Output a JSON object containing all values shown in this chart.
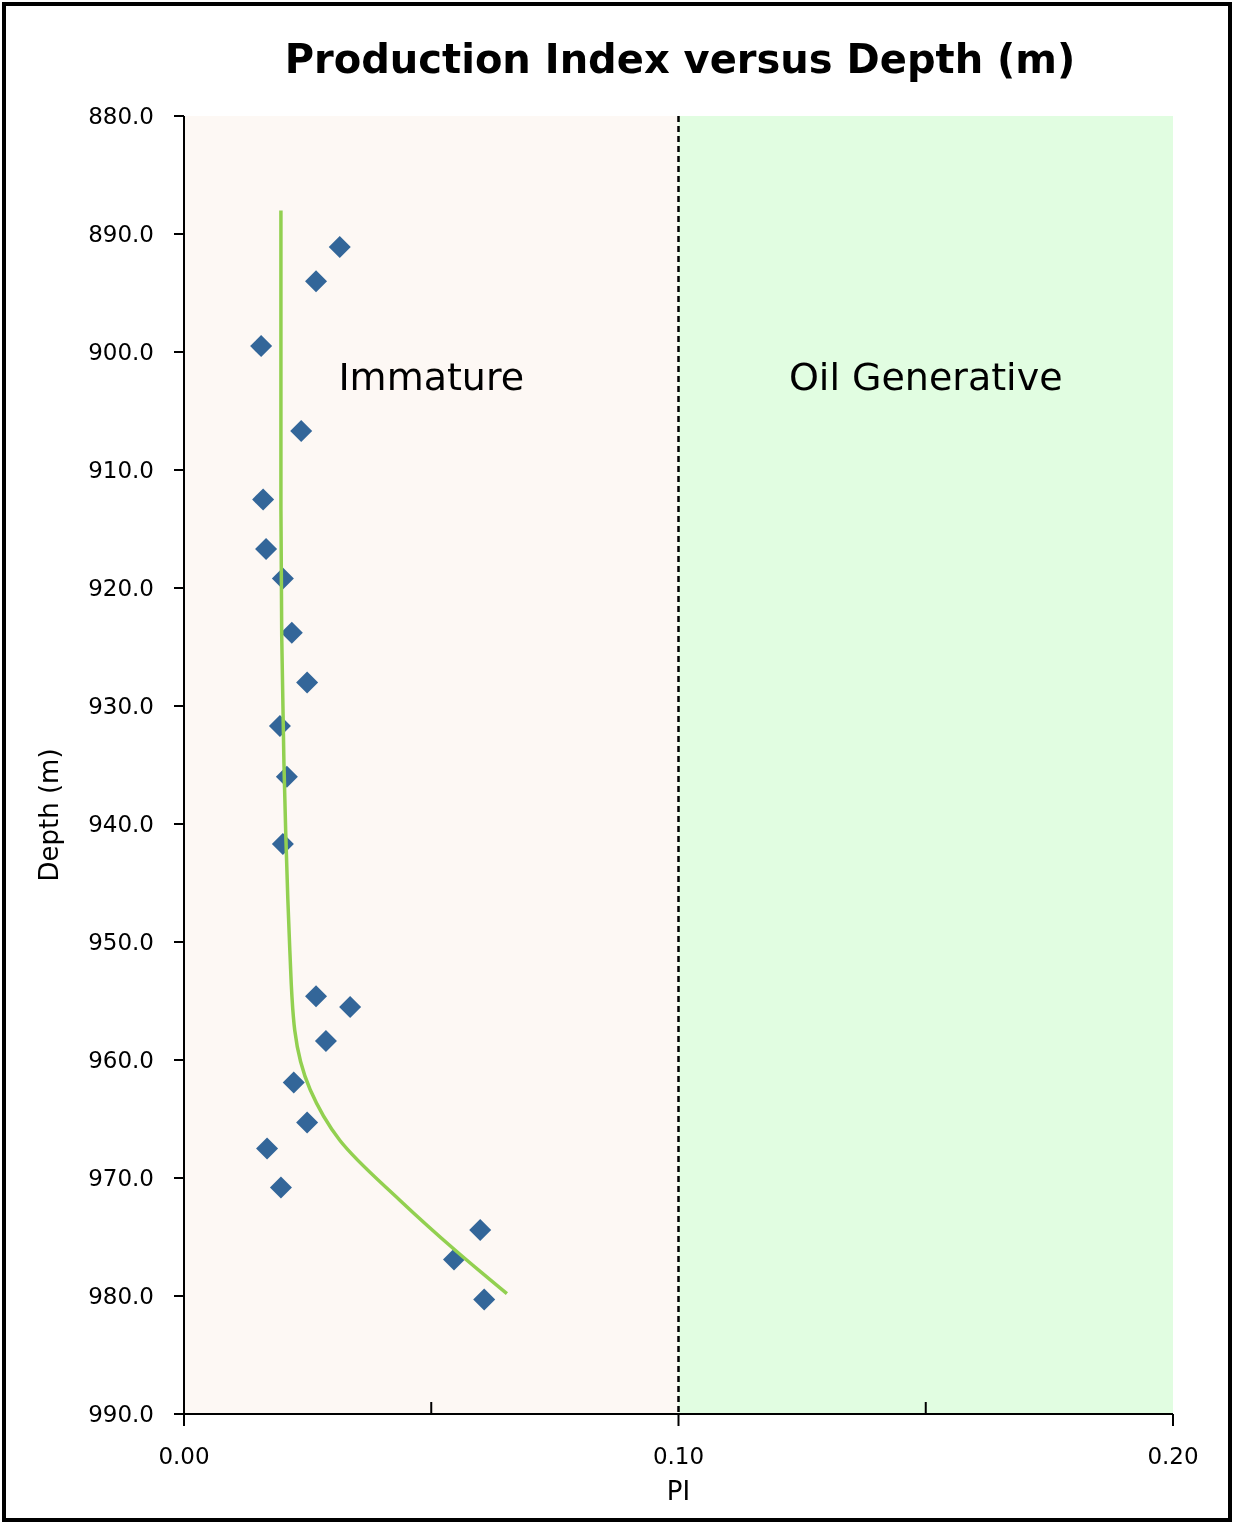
{
  "chart_data": {
    "type": "scatter",
    "title": "Production Index versus Depth (m)",
    "xlabel": "PI",
    "ylabel": "Depth (m)",
    "xlim": [
      0,
      0.2
    ],
    "xticks": [
      {
        "value": 0,
        "label": "0.00"
      },
      {
        "value": 0.05,
        "label": null
      },
      {
        "value": 0.1,
        "label": "0.10"
      },
      {
        "value": 0.15,
        "label": null
      },
      {
        "value": 0.2,
        "label": "0.20"
      }
    ],
    "ylim": [
      990,
      880
    ],
    "yticks": [
      {
        "value": 880,
        "label": "880.0"
      },
      {
        "value": 890,
        "label": "890.0"
      },
      {
        "value": 900,
        "label": "900.0"
      },
      {
        "value": 910,
        "label": "910.0"
      },
      {
        "value": 920,
        "label": "920.0"
      },
      {
        "value": 930,
        "label": "930.0"
      },
      {
        "value": 940,
        "label": "940.0"
      },
      {
        "value": 950,
        "label": "950.0"
      },
      {
        "value": 960,
        "label": "960.0"
      },
      {
        "value": 970,
        "label": "970.0"
      },
      {
        "value": 980,
        "label": "980.0"
      },
      {
        "value": 990,
        "label": "990.0"
      }
    ],
    "grid": false,
    "marker": "diamond",
    "series": [
      {
        "color": "#336699",
        "x": [
          0.0315,
          0.0267,
          0.0156,
          0.0237,
          0.016,
          0.0166,
          0.02,
          0.0218,
          0.0249,
          0.0194,
          0.0208,
          0.02,
          0.0267,
          0.0336,
          0.0287,
          0.0222,
          0.0249,
          0.0168,
          0.0196,
          0.0599,
          0.0546,
          0.0607
        ],
        "values": [
          891.1,
          894.0,
          899.5,
          906.7,
          912.5,
          916.7,
          919.2,
          923.8,
          928.0,
          931.7,
          936.0,
          941.7,
          954.6,
          955.5,
          958.4,
          961.9,
          965.3,
          967.5,
          970.8,
          974.4,
          976.9,
          980.3
        ]
      },
      {
        "type": "line",
        "color": "#92d050",
        "line_style": "solid",
        "marker": "none",
        "x": [
          0.0196,
          0.0196,
          0.021,
          0.0214,
          0.0224,
          0.0255,
          0.0315,
          0.0437,
          0.0548,
          0.0653
        ],
        "values": [
          888.0,
          912.5,
          946.4,
          950.7,
          957.5,
          962.5,
          966.8,
          971.9,
          976.1,
          979.8
        ]
      }
    ],
    "bands": [
      {
        "axis": "x",
        "from": 0,
        "to": 0.1,
        "label": "Immature",
        "color": "#fdf8f4"
      },
      {
        "axis": "x",
        "from": 0.1,
        "to": 0.2,
        "label": "Oil Generative",
        "color": "#e1fde1"
      }
    ],
    "ref_lines": [
      {
        "axis": "x",
        "value": 0.1,
        "color": "#000000",
        "line_style": "dashed"
      }
    ]
  }
}
